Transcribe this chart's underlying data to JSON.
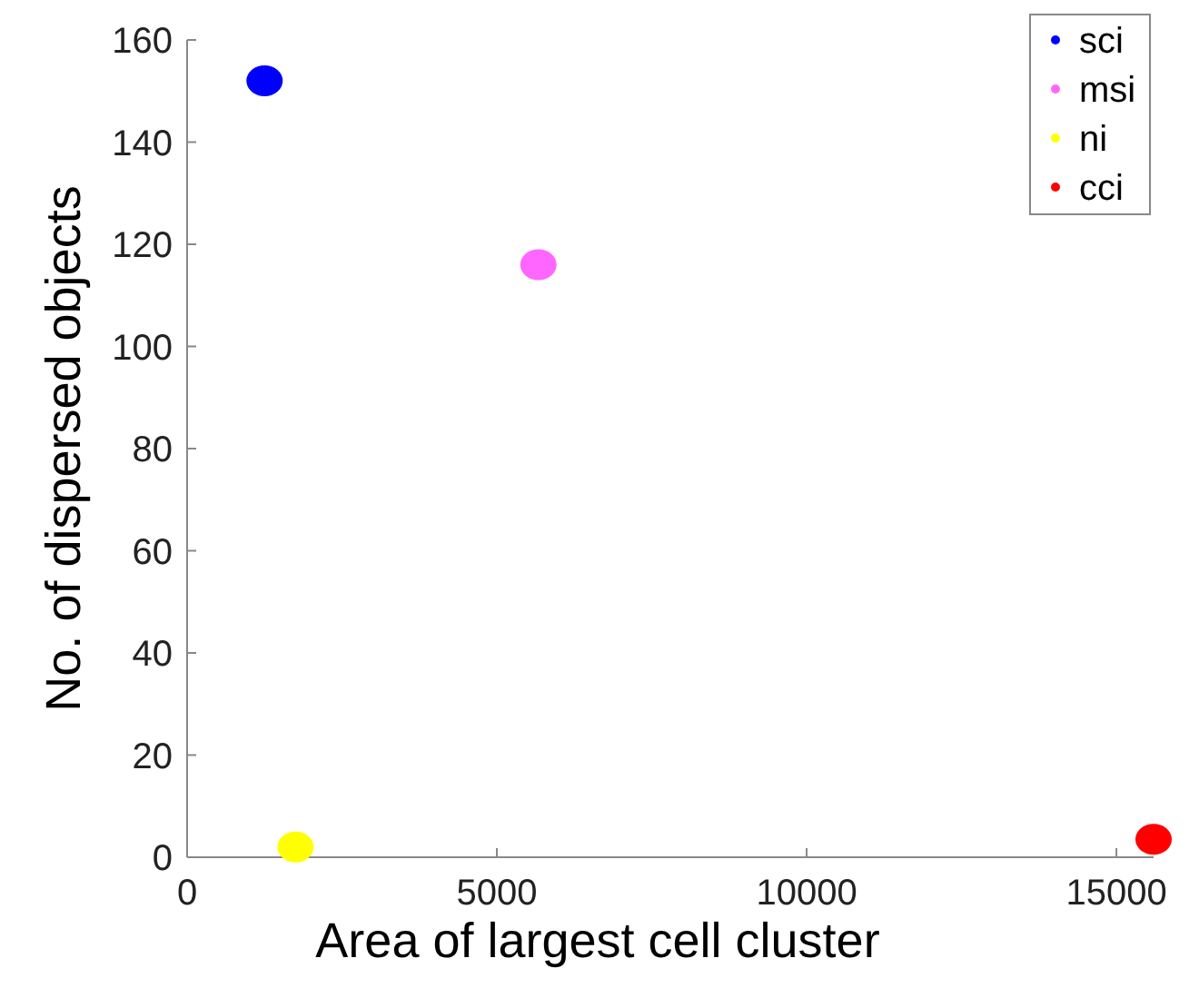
{
  "chart_data": {
    "type": "scatter",
    "xlabel": "Area of largest cell cluster",
    "ylabel": "No. of dispersed objects",
    "xlim": [
      0,
      15600
    ],
    "xticks": [
      0,
      5000,
      10000,
      15000
    ],
    "ylim": [
      0,
      160
    ],
    "yticks": [
      0,
      20,
      40,
      60,
      80,
      100,
      120,
      140,
      160
    ],
    "grid": false,
    "legend": "top right",
    "marker": "circle",
    "series": [
      {
        "name": "sci",
        "color": "#0000ff",
        "x": [
          1250
        ],
        "values": [
          152
        ]
      },
      {
        "name": "msi",
        "color": "#ff66ff",
        "x": [
          5670
        ],
        "values": [
          116
        ]
      },
      {
        "name": "ni",
        "color": "#ffff00",
        "x": [
          1750
        ],
        "values": [
          2
        ]
      },
      {
        "name": "cci",
        "color": "#ff0000",
        "x": [
          15600
        ],
        "values": [
          3.5
        ]
      }
    ]
  }
}
